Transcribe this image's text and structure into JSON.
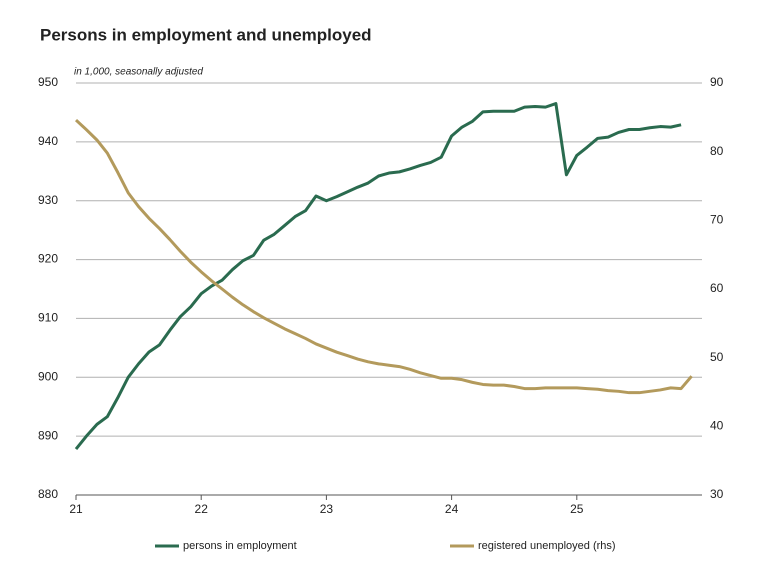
{
  "chart_data": {
    "type": "line",
    "title": "Persons in employment and unemployed",
    "subtitle": "in 1,000, seasonally adjusted",
    "x": [
      21,
      21.083,
      21.167,
      21.25,
      21.333,
      21.417,
      21.5,
      21.583,
      21.667,
      21.75,
      21.833,
      21.917,
      22,
      22.083,
      22.167,
      22.25,
      22.333,
      22.417,
      22.5,
      22.583,
      22.667,
      22.75,
      22.833,
      22.917,
      23,
      23.083,
      23.167,
      23.25,
      23.333,
      23.417,
      23.5,
      23.583,
      23.667,
      23.75,
      23.833,
      23.917,
      24,
      24.083,
      24.167,
      24.25,
      24.333,
      24.417,
      24.5,
      24.583,
      24.667,
      24.75,
      24.833,
      24.917,
      25,
      25.083,
      25.167,
      25.25,
      25.333,
      25.417,
      25.5,
      25.583,
      25.667,
      25.75,
      25.833,
      25.917
    ],
    "series": [
      {
        "name": "persons in employment",
        "color": "#2a6b4f",
        "axis": "y",
        "values": [
          887.8,
          890,
          892,
          893.3,
          896.5,
          900,
          902.3,
          904.3,
          905.5,
          908,
          910.3,
          912,
          914.2,
          915.5,
          916.5,
          918.3,
          919.8,
          920.7,
          923.3,
          924.3,
          925.8,
          927.3,
          928.3,
          930.8,
          930,
          930.7,
          931.5,
          932.3,
          933,
          934.2,
          934.7,
          934.9,
          935.4,
          936,
          936.5,
          937.4,
          941,
          942.5,
          943.5,
          945.1,
          945.2,
          945.2,
          945.2,
          945.9,
          946,
          945.9,
          946.5,
          934.4,
          937.7,
          939.1,
          940.6,
          940.8,
          941.6,
          942.1,
          942.1,
          942.4,
          942.6,
          942.5,
          942.9,
          null
        ]
      },
      {
        "name": "registered unemployed (rhs)",
        "color": "#b39a5c",
        "axis": "y2",
        "values": [
          84.6,
          83.2,
          81.7,
          79.8,
          77,
          74,
          72,
          70.3,
          68.8,
          67.2,
          65.5,
          63.9,
          62.5,
          61.2,
          60,
          58.8,
          57.7,
          56.7,
          55.8,
          55,
          54.2,
          53.5,
          52.8,
          52,
          51.4,
          50.8,
          50.3,
          49.8,
          49.4,
          49.1,
          48.9,
          48.7,
          48.3,
          47.8,
          47.4,
          47,
          47,
          46.8,
          46.4,
          46.1,
          46,
          46,
          45.8,
          45.5,
          45.5,
          45.6,
          45.6,
          45.6,
          45.6,
          45.5,
          45.4,
          45.2,
          45.1,
          44.9,
          44.9,
          45.1,
          45.3,
          45.6,
          45.5,
          47.3
        ]
      }
    ],
    "xlim": [
      21,
      26
    ],
    "xticks": [
      21,
      22,
      23,
      24,
      25
    ],
    "ylim": [
      880,
      950
    ],
    "yticks": [
      880,
      890,
      900,
      910,
      920,
      930,
      940,
      950
    ],
    "y2lim": [
      30,
      90
    ],
    "y2ticks": [
      30,
      40,
      50,
      60,
      70,
      80,
      90
    ],
    "grid": true
  }
}
